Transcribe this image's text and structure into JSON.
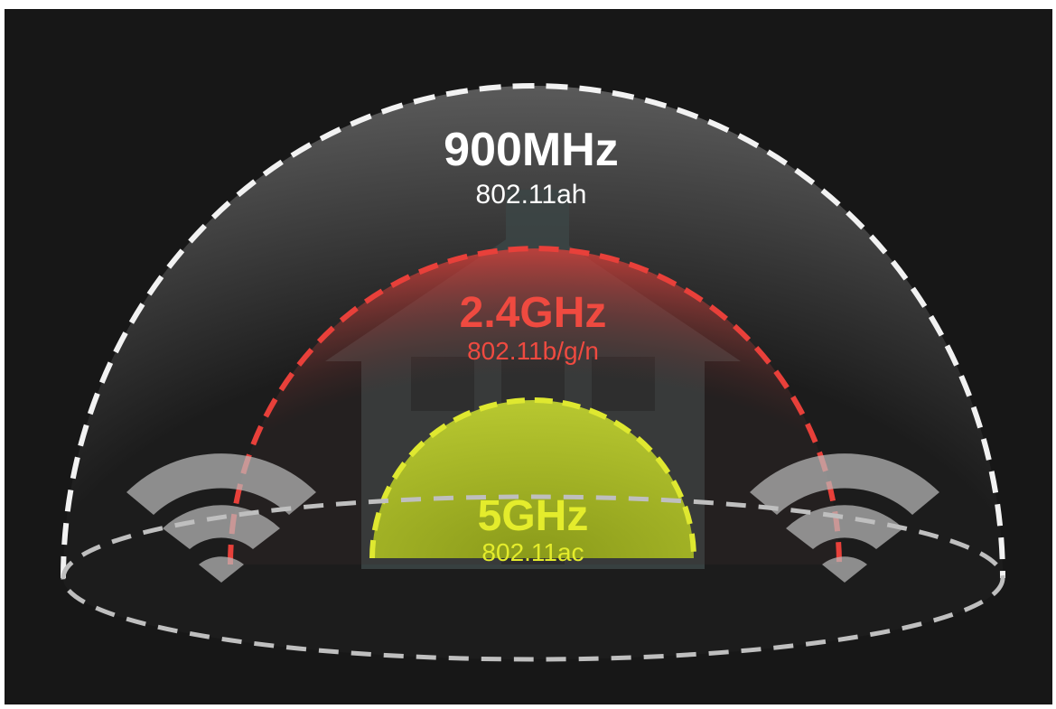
{
  "bands": [
    {
      "label": "900MHz",
      "standard": "802.11ah"
    },
    {
      "label": "2.4GHz",
      "standard": "802.11b/g/n"
    },
    {
      "label": "5GHz",
      "standard": "802.11ac"
    }
  ]
}
